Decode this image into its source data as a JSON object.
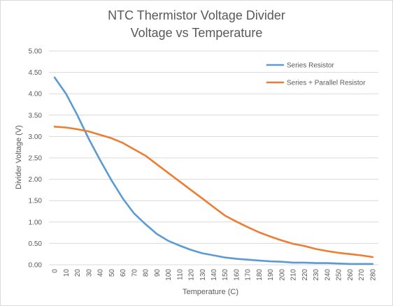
{
  "chart_data": {
    "type": "line",
    "title": [
      "NTC Thermistor Voltage Divider",
      "Voltage vs Temperature"
    ],
    "xlabel": "Temperature  (C)",
    "ylabel": "Divider Voltage (V)",
    "x": [
      0,
      10,
      20,
      30,
      40,
      50,
      60,
      70,
      80,
      90,
      100,
      110,
      120,
      130,
      140,
      150,
      160,
      170,
      180,
      190,
      200,
      210,
      220,
      230,
      240,
      250,
      260,
      270,
      280
    ],
    "ylim": [
      0,
      5
    ],
    "yticks": [
      0,
      0.5,
      1,
      1.5,
      2,
      2.5,
      3,
      3.5,
      4,
      4.5,
      5
    ],
    "ytick_labels": [
      "0.00",
      "0.50",
      "1.00",
      "1.50",
      "2.00",
      "2.50",
      "3.00",
      "3.50",
      "4.00",
      "4.50",
      "5.00"
    ],
    "grid": true,
    "legend_position": "top-right",
    "series": [
      {
        "name": "Series Resistor",
        "color": "#5b9bd5",
        "values": [
          4.38,
          4.0,
          3.5,
          2.95,
          2.45,
          1.98,
          1.55,
          1.2,
          0.95,
          0.72,
          0.56,
          0.45,
          0.35,
          0.27,
          0.22,
          0.17,
          0.14,
          0.12,
          0.1,
          0.08,
          0.07,
          0.05,
          0.05,
          0.04,
          0.04,
          0.03,
          0.02,
          0.02,
          0.02
        ]
      },
      {
        "name": "Series + Parallel Resistor",
        "color": "#ed7d31",
        "values": [
          3.23,
          3.21,
          3.17,
          3.12,
          3.04,
          2.96,
          2.85,
          2.7,
          2.55,
          2.35,
          2.15,
          1.95,
          1.75,
          1.55,
          1.35,
          1.15,
          1.01,
          0.88,
          0.76,
          0.66,
          0.57,
          0.49,
          0.44,
          0.37,
          0.32,
          0.28,
          0.25,
          0.22,
          0.18
        ]
      }
    ]
  }
}
